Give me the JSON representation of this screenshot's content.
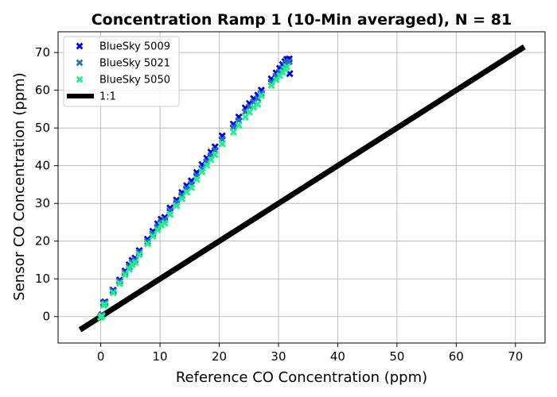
{
  "chart_data": {
    "type": "scatter",
    "title": "Concentration Ramp 1 (10-Min averaged), N = 81",
    "xlabel": "Reference CO Concentration (ppm)",
    "ylabel": "Sensor CO Concentration (ppm)",
    "xlim": [
      -7.2,
      75
    ],
    "ylim": [
      -7.0,
      75.5
    ],
    "xticks": [
      0,
      10,
      20,
      30,
      40,
      50,
      60,
      70
    ],
    "yticks": [
      0,
      10,
      20,
      30,
      40,
      50,
      60,
      70
    ],
    "grid": true,
    "legend": "top-left",
    "series": [
      {
        "name": "BlueSky 5009",
        "marker": "x",
        "color": "#0000ee",
        "x": [
          0,
          0.2,
          0.5,
          0.7,
          2.1,
          3.2,
          4.1,
          4.8,
          5.3,
          5.8,
          6.5,
          7.9,
          8.8,
          9.6,
          10.2,
          10.8,
          11.7,
          12.8,
          13.7,
          14.5,
          15.3,
          16.2,
          17.1,
          17.9,
          18.6,
          19.3,
          20.5,
          22.4,
          23.3,
          24.4,
          25.1,
          25.8,
          26.5,
          27.1,
          28.8,
          29.6,
          30.2,
          30.7,
          31.1,
          31.4,
          31.8,
          31.9
        ],
        "y": [
          0,
          0.5,
          3.7,
          3.9,
          7.0,
          9.7,
          12.1,
          13.7,
          14.9,
          15.5,
          17.5,
          20.5,
          22.6,
          24.6,
          25.8,
          26.3,
          28.8,
          30.9,
          32.9,
          34.7,
          36.0,
          38.2,
          40.3,
          42.0,
          43.6,
          45.0,
          47.9,
          51.0,
          52.9,
          55.3,
          56.5,
          57.8,
          58.7,
          60.0,
          63.0,
          64.6,
          65.8,
          66.8,
          67.6,
          68.2,
          68.3,
          64.4
        ]
      },
      {
        "name": "BlueSky 5021",
        "marker": "x",
        "color": "#1f77b4",
        "x": [
          0,
          0.2,
          0.5,
          0.7,
          2.1,
          3.2,
          4.1,
          4.8,
          5.3,
          5.8,
          6.5,
          7.9,
          8.8,
          9.6,
          10.2,
          10.8,
          11.7,
          12.8,
          13.7,
          14.5,
          15.3,
          16.2,
          17.1,
          17.9,
          18.6,
          19.3,
          20.5,
          22.4,
          23.3,
          24.4,
          25.1,
          25.8,
          26.5,
          27.1,
          28.8,
          29.6,
          30.2,
          30.7,
          31.1,
          31.4,
          31.8
        ],
        "y": [
          0,
          0.4,
          3.4,
          3.6,
          6.7,
          9.3,
          11.6,
          13.2,
          14.4,
          15.0,
          17.0,
          19.9,
          22.0,
          23.8,
          25.1,
          25.7,
          28.1,
          30.3,
          32.2,
          34.0,
          35.2,
          37.4,
          39.4,
          41.1,
          42.7,
          44.1,
          47.0,
          50.2,
          52.0,
          54.3,
          55.6,
          56.9,
          57.8,
          59.2,
          62.2,
          63.7,
          64.9,
          65.9,
          66.7,
          67.3,
          67.6
        ]
      },
      {
        "name": "BlueSky 5050",
        "marker": "x",
        "color": "#22ee88",
        "x": [
          0,
          0.2,
          0.5,
          0.7,
          2.1,
          3.2,
          4.1,
          4.8,
          5.3,
          5.8,
          6.5,
          7.9,
          8.8,
          9.6,
          10.2,
          10.8,
          11.7,
          12.8,
          13.7,
          14.5,
          15.3,
          16.2,
          17.1,
          17.9,
          18.6,
          19.3,
          20.5,
          22.4,
          23.3,
          24.4,
          25.1,
          25.8,
          26.5,
          27.1,
          28.8,
          29.6,
          30.2,
          30.7,
          31.1,
          31.4
        ],
        "y": [
          -0.2,
          0.1,
          3.0,
          3.2,
          6.3,
          8.8,
          11.1,
          12.6,
          13.8,
          14.4,
          16.4,
          19.3,
          21.3,
          23.0,
          24.3,
          24.8,
          27.1,
          29.4,
          31.3,
          33.0,
          34.2,
          36.4,
          38.4,
          40.1,
          41.6,
          42.9,
          45.8,
          48.9,
          50.7,
          52.9,
          54.2,
          55.5,
          56.3,
          58.6,
          61.3,
          62.8,
          63.9,
          64.8,
          65.6,
          66.2
        ]
      }
    ],
    "reference_line": {
      "name": "1:1",
      "color": "#000000",
      "x": [
        -3.5,
        71.5
      ],
      "y": [
        -3.5,
        71.5
      ]
    }
  }
}
